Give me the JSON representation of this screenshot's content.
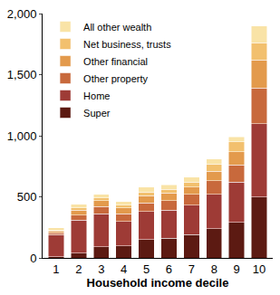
{
  "chart_data": {
    "type": "bar",
    "stacked": true,
    "x_label": "Household income decile",
    "categories": [
      "1",
      "2",
      "3",
      "4",
      "5",
      "6",
      "7",
      "8",
      "9",
      "10"
    ],
    "series": [
      {
        "name": "Super",
        "color": "#5c1a12",
        "values": [
          10,
          40,
          90,
          100,
          150,
          160,
          190,
          240,
          290,
          500
        ]
      },
      {
        "name": "Home",
        "color": "#9e3b36",
        "values": [
          180,
          270,
          270,
          200,
          230,
          230,
          240,
          280,
          330,
          600
        ]
      },
      {
        "name": "Other property",
        "color": "#c8693c",
        "values": [
          15,
          40,
          60,
          60,
          70,
          80,
          90,
          110,
          140,
          290
        ]
      },
      {
        "name": "Other financial",
        "color": "#e39a4c",
        "values": [
          15,
          40,
          50,
          50,
          60,
          60,
          60,
          80,
          110,
          230
        ]
      },
      {
        "name": "Net business, trusts",
        "color": "#f2c06e",
        "values": [
          5,
          20,
          20,
          20,
          30,
          30,
          40,
          60,
          80,
          140
        ]
      },
      {
        "name": "All other wealth",
        "color": "#f9e3a6",
        "values": [
          20,
          30,
          30,
          30,
          40,
          40,
          40,
          40,
          40,
          140
        ]
      }
    ],
    "ylim": [
      0,
      2000
    ],
    "yticks": [
      0,
      500,
      {
        "value": 1000,
        "label": "1,000"
      },
      {
        "value": 1500,
        "label": "1,500"
      },
      {
        "value": 2000,
        "label": "2,000"
      }
    ],
    "grid": false,
    "legend": "top left"
  }
}
